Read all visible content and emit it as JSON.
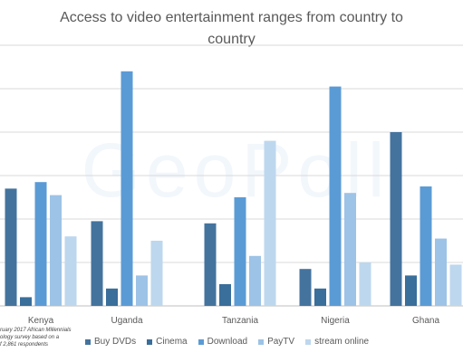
{
  "title_line1": "Access to video entertainment ranges from country to",
  "title_line2": "country",
  "watermark": "GeoPoll",
  "source_note": [
    "ruary 2017 African Millennials",
    "ology survey based on a",
    "f 2,861 respondents"
  ],
  "colors": {
    "Buy DVDs": "#44739e",
    "Cinema": "#3a6e9b",
    "Download": "#5b9bd5",
    "PayTV": "#9dc3e6",
    "stream online": "#bdd7ee",
    "gridline": "#d9d9d9",
    "text": "#595959"
  },
  "chart_data": {
    "type": "bar",
    "title": "Access to video entertainment ranges from country to country",
    "categories": [
      "Kenya",
      "Uganda",
      "Tanzania",
      "Nigeria",
      "Ghana"
    ],
    "series": [
      {
        "name": "Buy DVDs",
        "values": [
          27,
          19.5,
          19,
          8.5,
          40
        ]
      },
      {
        "name": "Cinema",
        "values": [
          2,
          4,
          5,
          4,
          7
        ]
      },
      {
        "name": "Download",
        "values": [
          28.5,
          54,
          25,
          50.5,
          27.5
        ]
      },
      {
        "name": "PayTV",
        "values": [
          25.5,
          7,
          11.5,
          26,
          15.5
        ]
      },
      {
        "name": "stream online",
        "values": [
          16,
          15,
          38,
          10,
          9.5
        ]
      }
    ],
    "ylim": [
      0,
      60
    ],
    "grid": true,
    "legend": "bottom"
  }
}
